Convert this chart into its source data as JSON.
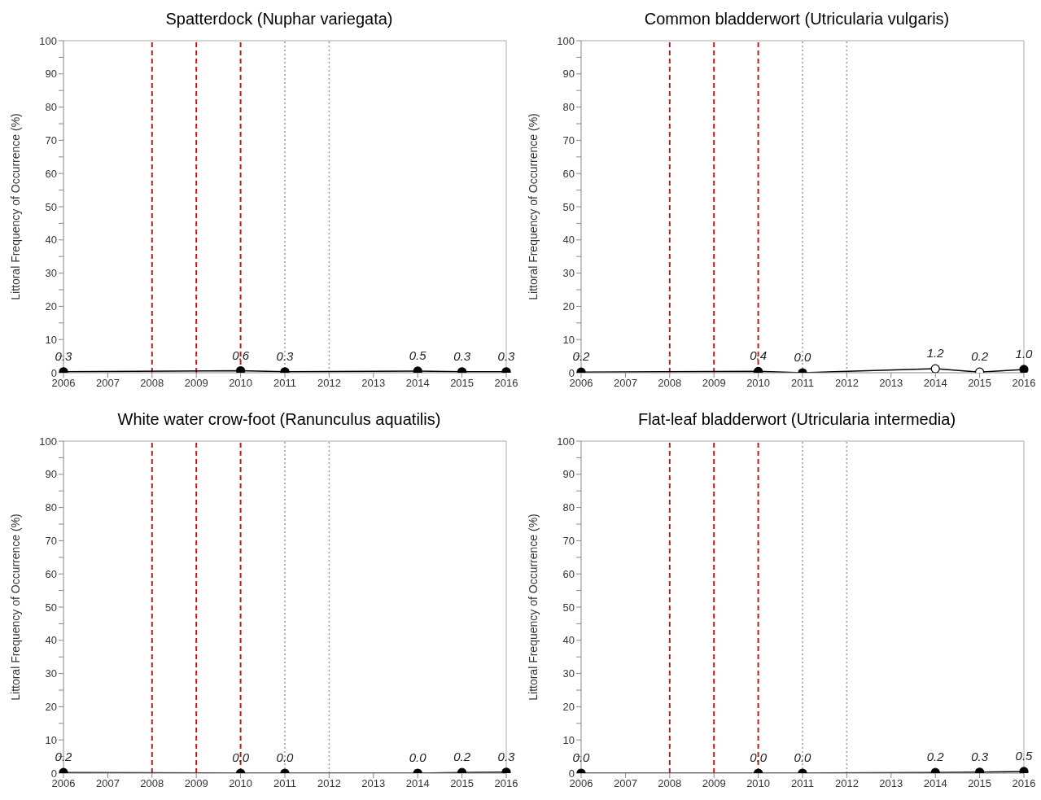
{
  "chart_data": [
    {
      "type": "line",
      "title": "Spatterdock (Nuphar variegata)",
      "ylabel": "Littoral Frequency of Occurrence (%)",
      "categories": [
        "2006",
        "2007",
        "2008",
        "2009",
        "2010",
        "2011",
        "2012",
        "2013",
        "2014",
        "2015",
        "2016"
      ],
      "ylim": [
        0,
        100
      ],
      "yticks": [
        0,
        {
          "value": 5,
          "label": null
        },
        10,
        {
          "value": 15,
          "label": null
        },
        20,
        {
          "value": 25,
          "label": null
        },
        30,
        {
          "value": 35,
          "label": null
        },
        40,
        {
          "value": 45,
          "label": null
        },
        50,
        {
          "value": 55,
          "label": null
        },
        60,
        {
          "value": 65,
          "label": null
        },
        70,
        {
          "value": 75,
          "label": null
        },
        80,
        {
          "value": 85,
          "label": null
        },
        90,
        {
          "value": 95,
          "label": null
        },
        100
      ],
      "grid": false,
      "legend": false,
      "marker": "circle",
      "line_style": "solid",
      "series": [
        {
          "color": "#000000",
          "values": [
            0.3,
            null,
            null,
            null,
            0.6,
            0.3,
            null,
            null,
            0.5,
            0.3,
            0.3
          ],
          "value_labels": [
            "0.3",
            null,
            null,
            null,
            "0.6",
            "0.3",
            null,
            null,
            "0.5",
            "0.3",
            "0.3"
          ]
        }
      ],
      "ref_lines": [
        {
          "axis": "x",
          "value": "2008",
          "color": "#b22222",
          "line_style": "dashed"
        },
        {
          "axis": "x",
          "value": "2009",
          "color": "#b22222",
          "line_style": "dashed"
        },
        {
          "axis": "x",
          "value": "2010",
          "color": "#b22222",
          "line_style": "dashed"
        },
        {
          "axis": "x",
          "value": "2011",
          "color": "#999999",
          "line_style": "dotted"
        },
        {
          "axis": "x",
          "value": "2012",
          "color": "#999999",
          "line_style": "dotted"
        }
      ]
    },
    {
      "type": "line",
      "title": "Common bladderwort (Utricularia vulgaris)",
      "ylabel": "Littoral Frequency of Occurrence (%)",
      "categories": [
        "2006",
        "2007",
        "2008",
        "2009",
        "2010",
        "2011",
        "2012",
        "2013",
        "2014",
        "2015",
        "2016"
      ],
      "ylim": [
        0,
        100
      ],
      "yticks": [
        0,
        {
          "value": 5,
          "label": null
        },
        10,
        {
          "value": 15,
          "label": null
        },
        20,
        {
          "value": 25,
          "label": null
        },
        30,
        {
          "value": 35,
          "label": null
        },
        40,
        {
          "value": 45,
          "label": null
        },
        50,
        {
          "value": 55,
          "label": null
        },
        60,
        {
          "value": 65,
          "label": null
        },
        70,
        {
          "value": 75,
          "label": null
        },
        80,
        {
          "value": 85,
          "label": null
        },
        90,
        {
          "value": 95,
          "label": null
        },
        100
      ],
      "grid": false,
      "legend": false,
      "marker": "circle",
      "line_style": "solid",
      "series": [
        {
          "color": "#000000",
          "colors": [
            "#000000",
            null,
            null,
            null,
            "#000000",
            "#000000",
            null,
            null,
            "#ffffff",
            "#ffffff",
            "#000000"
          ],
          "values": [
            0.2,
            null,
            null,
            null,
            0.4,
            0.0,
            null,
            null,
            1.2,
            0.2,
            1.0
          ],
          "value_labels": [
            "0.2",
            null,
            null,
            null,
            "0.4",
            "0.0",
            null,
            null,
            "1.2",
            "0.2",
            "1.0"
          ]
        }
      ],
      "ref_lines": [
        {
          "axis": "x",
          "value": "2008",
          "color": "#b22222",
          "line_style": "dashed"
        },
        {
          "axis": "x",
          "value": "2009",
          "color": "#b22222",
          "line_style": "dashed"
        },
        {
          "axis": "x",
          "value": "2010",
          "color": "#b22222",
          "line_style": "dashed"
        },
        {
          "axis": "x",
          "value": "2011",
          "color": "#999999",
          "line_style": "dotted"
        },
        {
          "axis": "x",
          "value": "2012",
          "color": "#999999",
          "line_style": "dotted"
        }
      ]
    },
    {
      "type": "line",
      "title": "White water crow-foot (Ranunculus aquatilis)",
      "ylabel": "Littoral Frequency of Occurrence (%)",
      "categories": [
        "2006",
        "2007",
        "2008",
        "2009",
        "2010",
        "2011",
        "2012",
        "2013",
        "2014",
        "2015",
        "2016"
      ],
      "ylim": [
        0,
        100
      ],
      "yticks": [
        0,
        {
          "value": 5,
          "label": null
        },
        10,
        {
          "value": 15,
          "label": null
        },
        20,
        {
          "value": 25,
          "label": null
        },
        30,
        {
          "value": 35,
          "label": null
        },
        40,
        {
          "value": 45,
          "label": null
        },
        50,
        {
          "value": 55,
          "label": null
        },
        60,
        {
          "value": 65,
          "label": null
        },
        70,
        {
          "value": 75,
          "label": null
        },
        80,
        {
          "value": 85,
          "label": null
        },
        90,
        {
          "value": 95,
          "label": null
        },
        100
      ],
      "grid": false,
      "legend": false,
      "marker": "circle",
      "line_style": "solid",
      "series": [
        {
          "color": "#000000",
          "values": [
            0.2,
            null,
            null,
            null,
            0.0,
            0.0,
            null,
            null,
            0.0,
            0.2,
            0.3
          ],
          "value_labels": [
            "0.2",
            null,
            null,
            null,
            "0.0",
            "0.0",
            null,
            null,
            "0.0",
            "0.2",
            "0.3"
          ]
        }
      ],
      "ref_lines": [
        {
          "axis": "x",
          "value": "2008",
          "color": "#b22222",
          "line_style": "dashed"
        },
        {
          "axis": "x",
          "value": "2009",
          "color": "#b22222",
          "line_style": "dashed"
        },
        {
          "axis": "x",
          "value": "2010",
          "color": "#b22222",
          "line_style": "dashed"
        },
        {
          "axis": "x",
          "value": "2011",
          "color": "#999999",
          "line_style": "dotted"
        },
        {
          "axis": "x",
          "value": "2012",
          "color": "#999999",
          "line_style": "dotted"
        }
      ]
    },
    {
      "type": "line",
      "title": "Flat-leaf bladderwort (Utricularia intermedia)",
      "ylabel": "Littoral Frequency of Occurrence (%)",
      "categories": [
        "2006",
        "2007",
        "2008",
        "2009",
        "2010",
        "2011",
        "2012",
        "2013",
        "2014",
        "2015",
        "2016"
      ],
      "ylim": [
        0,
        100
      ],
      "yticks": [
        0,
        {
          "value": 5,
          "label": null
        },
        10,
        {
          "value": 15,
          "label": null
        },
        20,
        {
          "value": 25,
          "label": null
        },
        30,
        {
          "value": 35,
          "label": null
        },
        40,
        {
          "value": 45,
          "label": null
        },
        50,
        {
          "value": 55,
          "label": null
        },
        60,
        {
          "value": 65,
          "label": null
        },
        70,
        {
          "value": 75,
          "label": null
        },
        80,
        {
          "value": 85,
          "label": null
        },
        90,
        {
          "value": 95,
          "label": null
        },
        100
      ],
      "grid": false,
      "legend": false,
      "marker": "circle",
      "line_style": "solid",
      "series": [
        {
          "color": "#000000",
          "values": [
            0.0,
            null,
            null,
            null,
            0.0,
            0.0,
            null,
            null,
            0.2,
            0.3,
            0.5
          ],
          "value_labels": [
            "0.0",
            null,
            null,
            null,
            "0.0",
            "0.0",
            null,
            null,
            "0.2",
            "0.3",
            "0.5"
          ]
        }
      ],
      "ref_lines": [
        {
          "axis": "x",
          "value": "2008",
          "color": "#b22222",
          "line_style": "dashed"
        },
        {
          "axis": "x",
          "value": "2009",
          "color": "#b22222",
          "line_style": "dashed"
        },
        {
          "axis": "x",
          "value": "2010",
          "color": "#b22222",
          "line_style": "dashed"
        },
        {
          "axis": "x",
          "value": "2011",
          "color": "#999999",
          "line_style": "dotted"
        },
        {
          "axis": "x",
          "value": "2012",
          "color": "#999999",
          "line_style": "dotted"
        }
      ]
    }
  ]
}
